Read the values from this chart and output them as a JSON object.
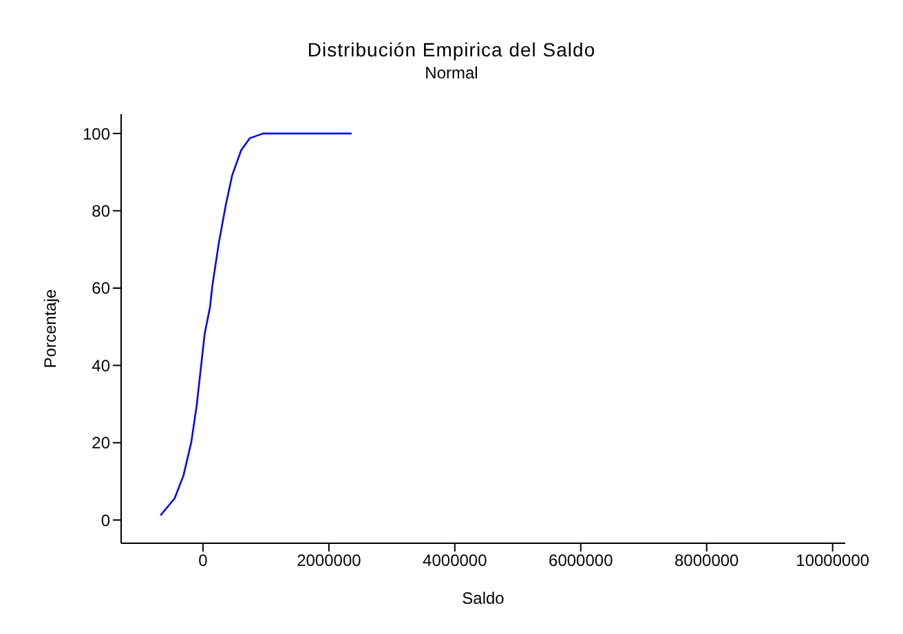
{
  "chart_data": {
    "type": "line",
    "title": "Distribución Empirica del Saldo",
    "subtitle": "Normal",
    "xlabel": "Saldo",
    "ylabel": "Porcentaje",
    "x": [
      -675000,
      -450000,
      -310000,
      -185000,
      -100000,
      27000,
      112000,
      148000,
      253000,
      359000,
      464000,
      605000,
      745000,
      956000,
      1170000,
      2360000
    ],
    "series": [
      {
        "color": "#0000ff",
        "values": [
          1.2,
          5.6,
          11.5,
          20.2,
          29.6,
          48.2,
          55.1,
          60.5,
          71.8,
          81.2,
          89.2,
          95.6,
          98.8,
          100,
          100,
          100
        ]
      }
    ],
    "xlim": [
      -1300000,
      10200000
    ],
    "xticks": [
      0,
      2000000,
      4000000,
      6000000,
      8000000,
      10000000
    ],
    "ylim": [
      -6,
      105
    ],
    "yticks": [
      0,
      20,
      40,
      60,
      80,
      100
    ],
    "grid": false,
    "legend": false,
    "marker": "none",
    "line_style": "solid"
  }
}
